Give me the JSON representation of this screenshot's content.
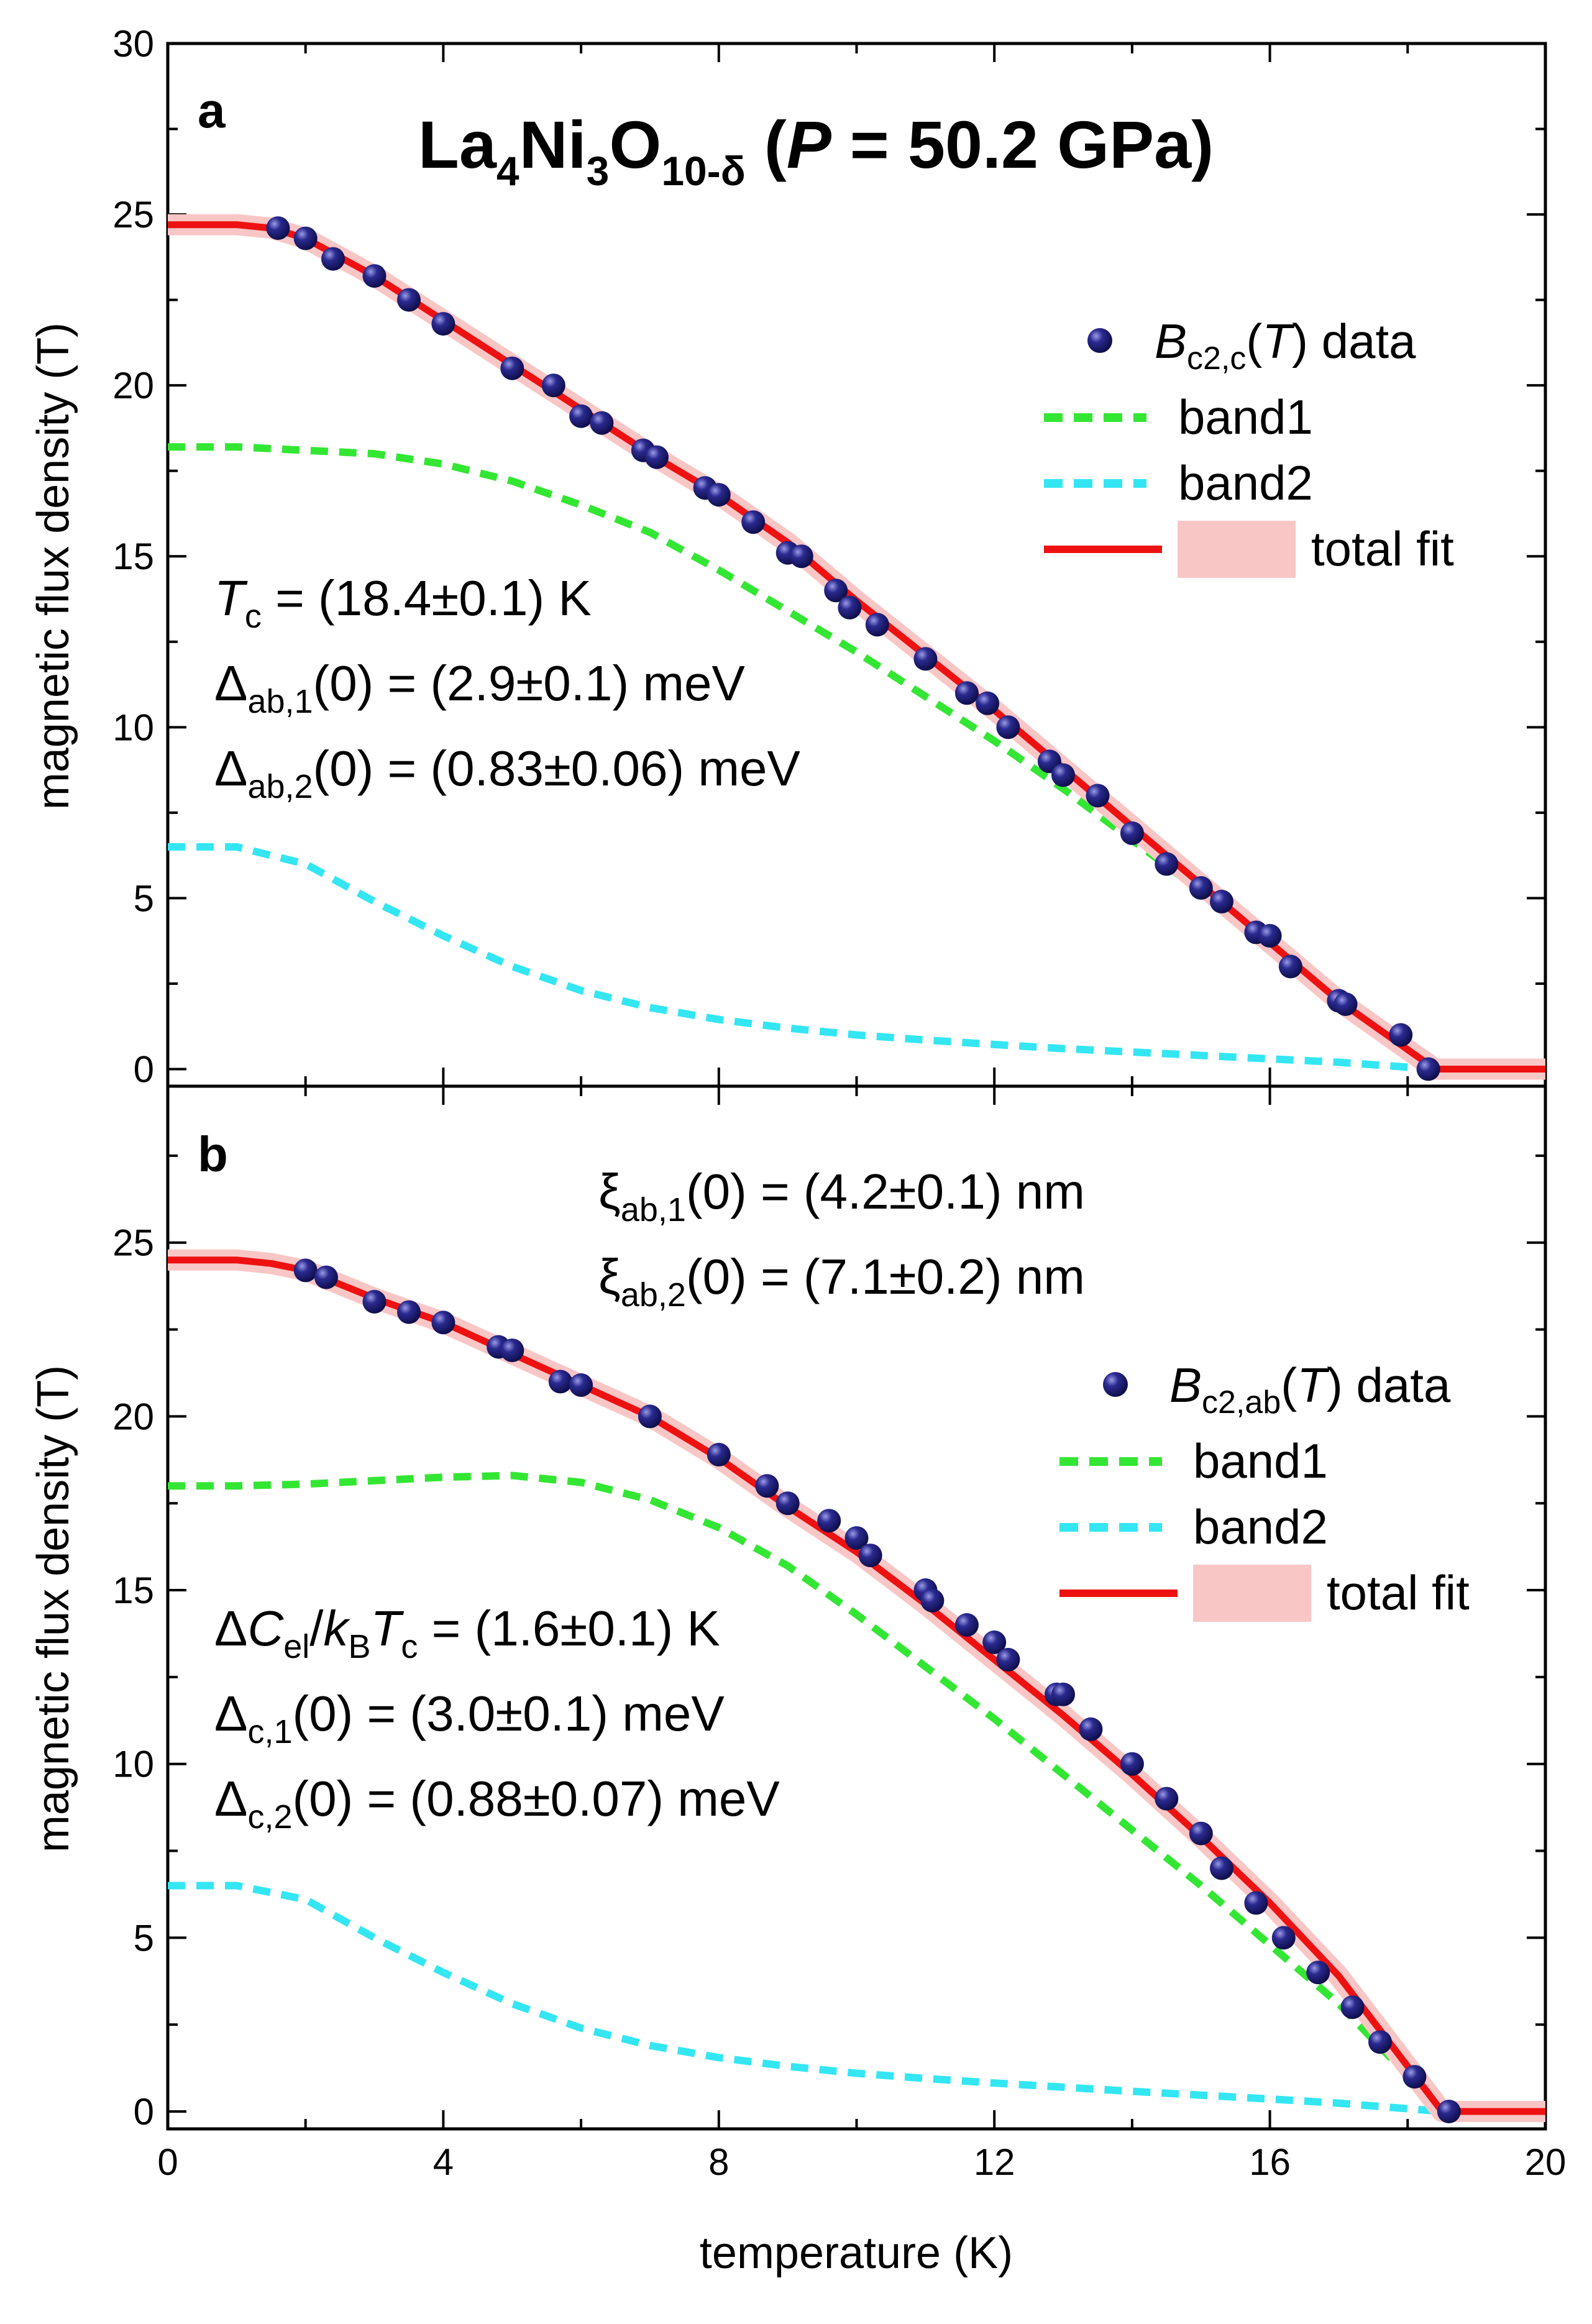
{
  "figure_title": {
    "prefix": "La",
    "sub1": "4",
    "mid1": "Ni",
    "sub2": "3",
    "mid2": "O",
    "sub3": "10-δ",
    "open": " (",
    "pvar": "P",
    "pval": " = 50.2 GPa)"
  },
  "xlabel": "temperature (K)",
  "x_ticks": [
    "0",
    "4",
    "8",
    "12",
    "16",
    "20"
  ],
  "y_ticks_a": [
    "0",
    "5",
    "10",
    "15",
    "20",
    "25",
    "30"
  ],
  "y_ticks_b": [
    "0",
    "5",
    "10",
    "15",
    "20",
    "25"
  ],
  "colors": {
    "data": "#1a1a6e",
    "band1": "#33e633",
    "band2": "#33e6f2",
    "fit": "#ee1111",
    "fit_band": "#f9c6c6"
  },
  "panel_a": {
    "label": "a",
    "ylabel": "magnetic flux density (T)",
    "notes": {
      "tc": {
        "sym": "T",
        "sub": "c",
        "rest": " = (18.4±0.1) K"
      },
      "d1": {
        "sym": "Δ",
        "sub": "ab,1",
        "rest": "(0) = (2.9±0.1) meV"
      },
      "d2": {
        "sym": "Δ",
        "sub": "ab,2",
        "rest": "(0) = (0.83±0.06) meV"
      }
    },
    "legend": {
      "data_pre": "B",
      "data_sub": "c2,c",
      "data_mid": "(",
      "data_var": "T",
      "data_post": ") data",
      "band1": "band1",
      "band2": "band2",
      "fit": "total fit"
    }
  },
  "panel_b": {
    "label": "b",
    "ylabel": "magnetic flux density (T)",
    "notes": {
      "xi1": {
        "sym": "ξ",
        "sub": "ab,1",
        "rest": "(0) = (4.2±0.1) nm"
      },
      "xi2": {
        "sym": "ξ",
        "sub": "ab,2",
        "rest": "(0) = (7.1±0.2) nm"
      },
      "dc": {
        "p1": "Δ",
        "v1": "C",
        "s1": "el",
        "p2": "/",
        "v2": "k",
        "s2": "B",
        "v3": "T",
        "s3": "c",
        "rest": " = (1.6±0.1) K"
      },
      "d1": {
        "sym": "Δ",
        "sub": "c,1",
        "rest": "(0) = (3.0±0.1) meV"
      },
      "d2": {
        "sym": "Δ",
        "sub": "c,2",
        "rest": "(0) = (0.88±0.07) meV"
      }
    },
    "legend": {
      "data_pre": "B",
      "data_sub": "c2,ab",
      "data_mid": "(",
      "data_var": "T",
      "data_post": ") data",
      "band1": "band1",
      "band2": "band2",
      "fit": "total fit"
    }
  },
  "chart_data": [
    {
      "type": "scatter",
      "panel": "a",
      "title": "La4Ni3O10-δ (P = 50.2 GPa)",
      "xlabel": "temperature (K)",
      "ylabel": "magnetic flux density (T)",
      "xlim": [
        0,
        20
      ],
      "ylim": [
        -0.5,
        30
      ],
      "legend_position": "right",
      "series": [
        {
          "name": "Bc2,c(T) data",
          "kind": "points",
          "x": [
            1.6,
            2.0,
            2.4,
            3.0,
            3.5,
            4.0,
            5.0,
            5.6,
            6.0,
            6.3,
            6.9,
            7.1,
            7.8,
            8.0,
            8.5,
            9.0,
            9.2,
            9.7,
            9.9,
            10.3,
            11.0,
            11.6,
            11.9,
            12.2,
            12.8,
            13.0,
            13.5,
            14.0,
            14.5,
            15.0,
            15.3,
            15.8,
            16.0,
            16.3,
            17.0,
            17.1,
            17.9,
            18.3
          ],
          "y": [
            24.6,
            24.3,
            23.7,
            23.2,
            22.5,
            21.8,
            20.5,
            20.0,
            19.1,
            18.9,
            18.1,
            17.9,
            17.0,
            16.8,
            16.0,
            15.1,
            15.0,
            14.0,
            13.5,
            13.0,
            12.0,
            11.0,
            10.7,
            10.0,
            9.0,
            8.6,
            8.0,
            6.9,
            6.0,
            5.3,
            4.9,
            4.0,
            3.9,
            3.0,
            2.0,
            1.9,
            1.0,
            0.0
          ]
        },
        {
          "name": "band1",
          "kind": "dashed",
          "x": [
            0,
            1,
            2,
            3,
            4,
            5,
            6,
            7,
            8,
            9,
            10,
            11,
            12,
            13,
            14,
            15,
            16,
            17,
            18.4
          ],
          "y": [
            18.2,
            18.2,
            18.1,
            18.0,
            17.7,
            17.2,
            16.5,
            15.7,
            14.6,
            13.4,
            12.2,
            10.9,
            9.6,
            8.2,
            6.7,
            5.2,
            3.7,
            2.1,
            0.0
          ]
        },
        {
          "name": "band2",
          "kind": "dashed",
          "x": [
            0,
            1,
            2,
            3,
            4,
            5,
            6,
            7,
            8,
            9,
            10,
            11,
            12,
            13,
            14,
            15,
            16,
            17,
            18.4
          ],
          "y": [
            6.5,
            6.5,
            6.0,
            4.9,
            3.9,
            3.0,
            2.3,
            1.8,
            1.45,
            1.2,
            1.0,
            0.85,
            0.72,
            0.6,
            0.5,
            0.4,
            0.3,
            0.2,
            0.0
          ]
        },
        {
          "name": "total fit",
          "kind": "line",
          "x": [
            0,
            1,
            1.5,
            2,
            3,
            4,
            5,
            6,
            7,
            8,
            9,
            10,
            11,
            12,
            13,
            14,
            15,
            16,
            17,
            18.4,
            20
          ],
          "y": [
            24.7,
            24.7,
            24.6,
            24.3,
            23.2,
            21.9,
            20.6,
            19.3,
            18.0,
            16.8,
            15.4,
            13.7,
            12.1,
            10.5,
            8.8,
            7.1,
            5.4,
            3.7,
            2.0,
            0.0,
            0.0
          ]
        }
      ]
    },
    {
      "type": "scatter",
      "panel": "b",
      "xlabel": "temperature (K)",
      "ylabel": "magnetic flux density (T)",
      "xlim": [
        0,
        20
      ],
      "ylim": [
        -0.5,
        29.5
      ],
      "legend_position": "right",
      "series": [
        {
          "name": "Bc2,ab(T) data",
          "kind": "points",
          "x": [
            2.0,
            2.3,
            3.0,
            3.5,
            4.0,
            4.8,
            5.0,
            5.7,
            6.0,
            7.0,
            8.0,
            8.7,
            9.0,
            9.6,
            10.0,
            10.2,
            11.0,
            11.1,
            11.6,
            12.0,
            12.2,
            12.9,
            13.0,
            13.4,
            14.0,
            14.5,
            15.0,
            15.3,
            15.8,
            16.2,
            16.7,
            17.2,
            17.6,
            18.1,
            18.6
          ],
          "y": [
            24.2,
            24.0,
            23.3,
            23.0,
            22.7,
            22.0,
            21.9,
            21.0,
            20.9,
            20.0,
            18.9,
            18.0,
            17.5,
            17.0,
            16.5,
            16.0,
            15.0,
            14.7,
            14.0,
            13.5,
            13.0,
            12.0,
            12.0,
            11.0,
            10.0,
            9.0,
            8.0,
            7.0,
            6.0,
            5.0,
            4.0,
            3.0,
            2.0,
            1.0,
            0.0
          ]
        },
        {
          "name": "band1",
          "kind": "dashed",
          "x": [
            0,
            1,
            2,
            3,
            4,
            5,
            6,
            7,
            8,
            9,
            10,
            11,
            12,
            13,
            14,
            15,
            16,
            17,
            18.5
          ],
          "y": [
            18.0,
            18.0,
            18.05,
            18.15,
            18.25,
            18.3,
            18.1,
            17.6,
            16.8,
            15.7,
            14.3,
            12.8,
            11.3,
            9.7,
            8.1,
            6.5,
            4.8,
            3.1,
            0.0
          ]
        },
        {
          "name": "band2",
          "kind": "dashed",
          "x": [
            0,
            1,
            2,
            3,
            4,
            5,
            6,
            7,
            8,
            9,
            10,
            11,
            12,
            13,
            14,
            15,
            16,
            17,
            18.5
          ],
          "y": [
            6.5,
            6.5,
            6.1,
            5.0,
            4.0,
            3.1,
            2.4,
            1.9,
            1.55,
            1.3,
            1.1,
            0.95,
            0.82,
            0.7,
            0.58,
            0.47,
            0.36,
            0.24,
            0.0
          ]
        },
        {
          "name": "total fit",
          "kind": "line",
          "x": [
            0,
            1,
            1.5,
            2,
            3,
            4,
            5,
            6,
            7,
            8,
            9,
            10,
            11,
            12,
            13,
            14,
            15,
            16,
            17,
            18.5,
            20
          ],
          "y": [
            24.5,
            24.5,
            24.4,
            24.2,
            23.4,
            22.7,
            21.8,
            20.9,
            20.0,
            18.8,
            17.4,
            16.1,
            14.6,
            13.0,
            11.4,
            9.7,
            7.9,
            6.0,
            3.9,
            0.0,
            0.0
          ]
        }
      ]
    }
  ]
}
